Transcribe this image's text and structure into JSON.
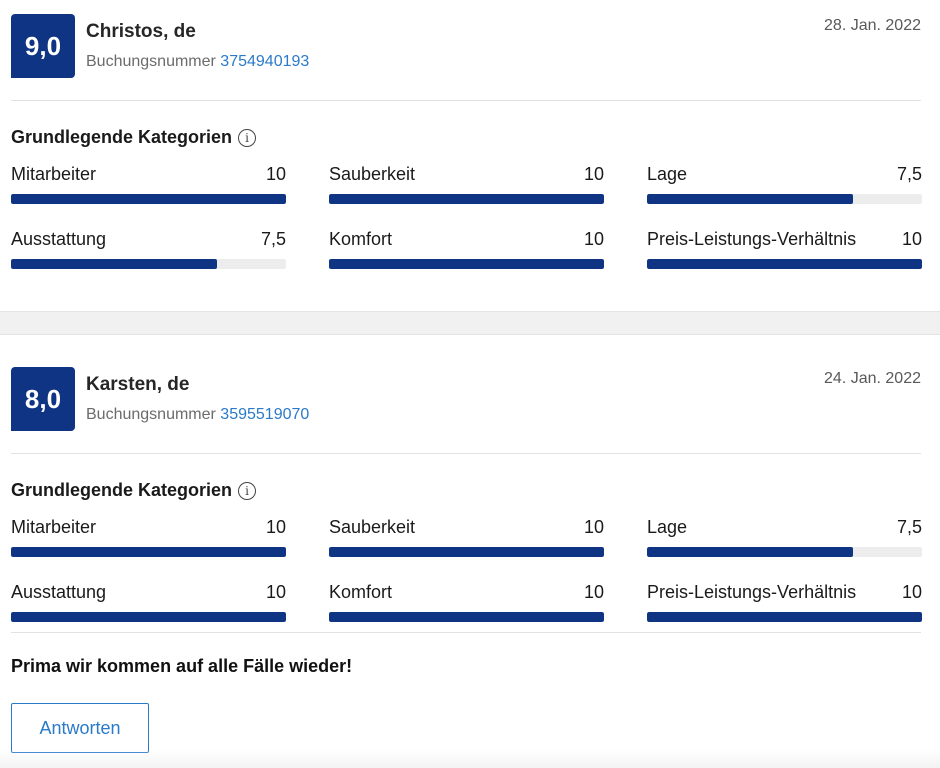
{
  "accent_color": "#0f3483",
  "link_color": "#2a7ac9",
  "reviews": [
    {
      "score": "9,0",
      "name": "Christos, de",
      "booking_label": "Buchungsnummer",
      "booking_number": "3754940193",
      "date": "28. Jan. 2022",
      "categories_title": "Grundlegende Kategorien",
      "info_icon": "info-icon",
      "categories": [
        {
          "label": "Mitarbeiter",
          "value": "10",
          "fill": 1.0
        },
        {
          "label": "Sauberkeit",
          "value": "10",
          "fill": 1.0
        },
        {
          "label": "Lage",
          "value": "7,5",
          "fill": 0.75
        },
        {
          "label": "Ausstattung",
          "value": "7,5",
          "fill": 0.75
        },
        {
          "label": "Komfort",
          "value": "10",
          "fill": 1.0
        },
        {
          "label": "Preis-Leistungs-Verhältnis",
          "value": "10",
          "fill": 1.0
        }
      ]
    },
    {
      "score": "8,0",
      "name": "Karsten, de",
      "booking_label": "Buchungsnummer",
      "booking_number": "3595519070",
      "date": "24. Jan. 2022",
      "categories_title": "Grundlegende Kategorien",
      "info_icon": "info-icon",
      "categories": [
        {
          "label": "Mitarbeiter",
          "value": "10",
          "fill": 1.0
        },
        {
          "label": "Sauberkeit",
          "value": "10",
          "fill": 1.0
        },
        {
          "label": "Lage",
          "value": "7,5",
          "fill": 0.75
        },
        {
          "label": "Ausstattung",
          "value": "10",
          "fill": 1.0
        },
        {
          "label": "Komfort",
          "value": "10",
          "fill": 1.0
        },
        {
          "label": "Preis-Leistungs-Verhältnis",
          "value": "10",
          "fill": 1.0
        }
      ],
      "comment": "Prima wir kommen auf alle Fälle wieder!",
      "reply_label": "Antworten"
    }
  ]
}
